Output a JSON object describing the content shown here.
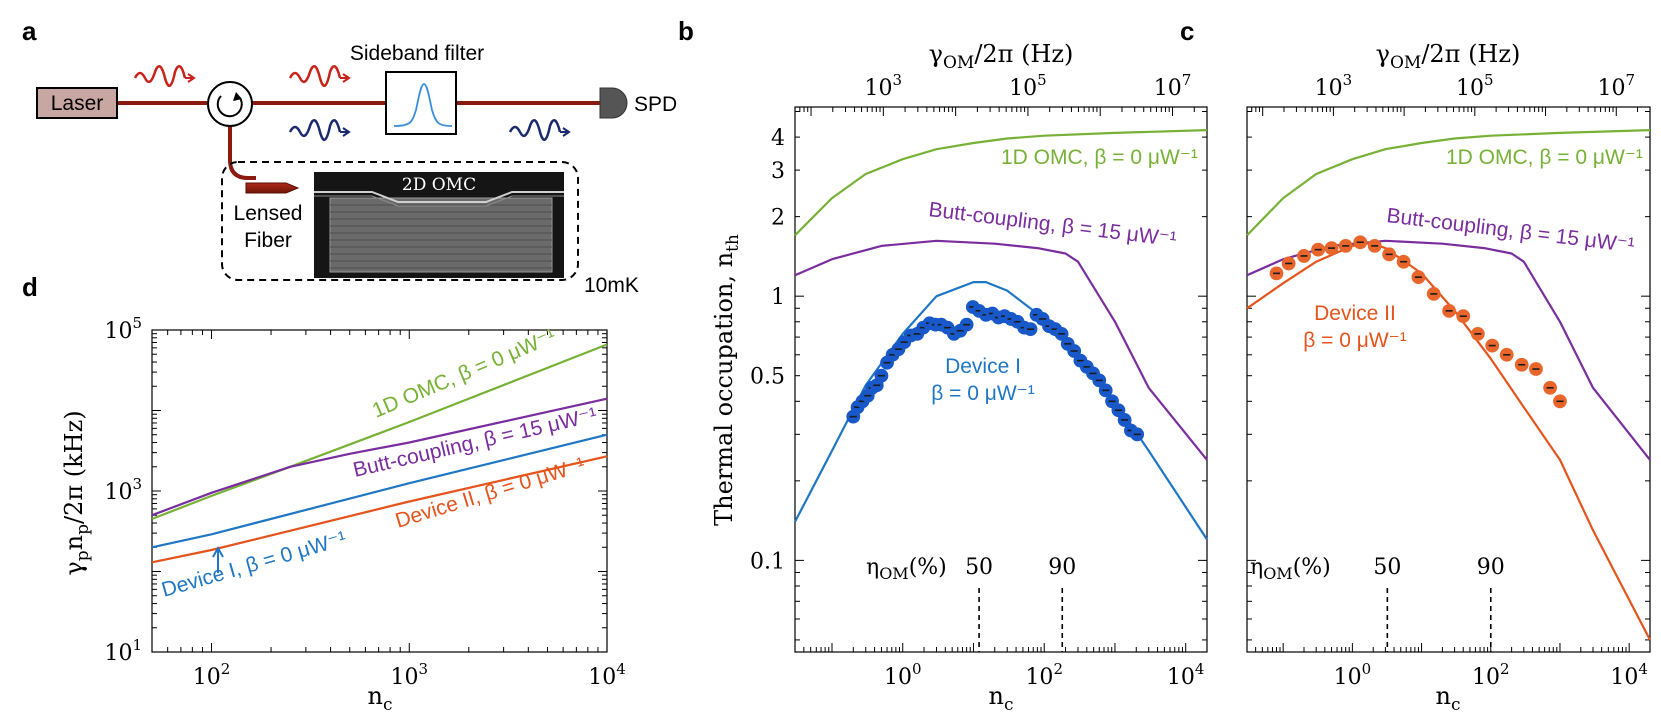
{
  "colors": {
    "green": "#77b135",
    "purple": "#7a2d9e",
    "blue": "#1f77c4",
    "orange": "#e5541c",
    "blue_pt": "#1858c8",
    "orange_pt": "#e8662c",
    "dark_red": "#8b1a0e",
    "navy": "#1a2a6c",
    "laser_box": "#c8a7a3"
  },
  "panel_labels": {
    "a": "a",
    "b": "b",
    "c": "c",
    "d": "d"
  },
  "schematic": {
    "laser": "Laser",
    "sideband_filter": "Sideband filter",
    "spd": "SPD",
    "lensed": "Lensed",
    "fiber": "Fiber",
    "device_label": "2D OMC",
    "temperature": "10mK"
  },
  "chart_data": [
    {
      "id": "d",
      "type": "line",
      "xscale": "log",
      "yscale": "log",
      "xlim": [
        50,
        10000
      ],
      "ylim": [
        10,
        100000
      ],
      "xlabel": "n_c",
      "ylabel": "γ_p n_p / 2π (kHz)",
      "xticks": [
        {
          "v": 100,
          "m": "10",
          "e": "2"
        },
        {
          "v": 1000,
          "m": "10",
          "e": "3"
        },
        {
          "v": 10000,
          "m": "10",
          "e": "4"
        }
      ],
      "yticks": [
        {
          "v": 10,
          "m": "10",
          "e": "1"
        },
        {
          "v": 1000,
          "m": "10",
          "e": "3"
        },
        {
          "v": 100000,
          "m": "10",
          "e": "5"
        }
      ],
      "series": [
        {
          "name": "1D OMC, β = 0 μW⁻¹",
          "color": "green",
          "x": [
            50,
            100,
            250,
            1000,
            10000
          ],
          "y": [
            450,
            870,
            2000,
            7200,
            66000
          ]
        },
        {
          "name": "Butt-coupling, β = 15 μW⁻¹",
          "color": "purple",
          "x": [
            50,
            100,
            250,
            500,
            1000,
            10000
          ],
          "y": [
            500,
            950,
            2000,
            2900,
            4000,
            14000
          ]
        },
        {
          "name": "Device I, β = 0 μW⁻¹",
          "color": "blue",
          "x": [
            50,
            100,
            1000,
            10000
          ],
          "y": [
            200,
            290,
            1250,
            5000
          ]
        },
        {
          "name": "Device II, β = 0 μW⁻¹",
          "color": "orange",
          "x": [
            50,
            100,
            1000,
            10000
          ],
          "y": [
            130,
            185,
            740,
            2700
          ]
        }
      ]
    },
    {
      "id": "b",
      "type": "line+scatter",
      "xscale": "log",
      "yscale": "log",
      "xlim": [
        0.03,
        20000
      ],
      "ylim": [
        0.045,
        5.2
      ],
      "xlabel": "n_c",
      "ylabel": "Thermal occupation, n_th",
      "top_xlabel": "γ_OM/2π (Hz)",
      "top_xlim": [
        60,
        30000000
      ],
      "xticks": [
        {
          "v": 1,
          "m": "10",
          "e": "0"
        },
        {
          "v": 100,
          "m": "10",
          "e": "2"
        },
        {
          "v": 10000,
          "m": "10",
          "e": "4"
        }
      ],
      "top_xticks": [
        {
          "v": 1000,
          "m": "10",
          "e": "3"
        },
        {
          "v": 100000,
          "m": "10",
          "e": "5"
        },
        {
          "v": 10000000,
          "m": "10",
          "e": "7"
        }
      ],
      "yticks": [
        0.1,
        0.5,
        1,
        2,
        3,
        4
      ],
      "ytick_labels": [
        "0.1",
        "0.5",
        "1",
        "2",
        "3",
        "4"
      ],
      "eta_label": "η_OM(%)",
      "eta_marks": [
        {
          "label": "50",
          "x": 12
        },
        {
          "label": "90",
          "x": 180
        }
      ],
      "series": [
        {
          "name": "1D OMC, β = 0 μW⁻¹",
          "color": "green",
          "x": [
            0.03,
            0.1,
            0.3,
            1,
            3,
            10,
            30,
            100,
            1000,
            20000
          ],
          "y": [
            1.7,
            2.35,
            2.9,
            3.3,
            3.6,
            3.8,
            3.95,
            4.05,
            4.15,
            4.25
          ]
        },
        {
          "name": "Butt-coupling, β = 15 μW⁻¹",
          "color": "purple",
          "x": [
            0.03,
            0.1,
            0.5,
            3,
            20,
            80,
            200,
            300,
            1000,
            3000,
            20000
          ],
          "y": [
            1.2,
            1.38,
            1.55,
            1.62,
            1.58,
            1.52,
            1.45,
            1.35,
            0.8,
            0.45,
            0.24
          ]
        },
        {
          "name": "Device I, β = 0 μW⁻¹",
          "color": "blue",
          "x": [
            0.03,
            0.1,
            0.3,
            1,
            3,
            10,
            15,
            30,
            100,
            300,
            1000,
            3000,
            20000
          ],
          "y": [
            0.14,
            0.26,
            0.46,
            0.72,
            1.0,
            1.13,
            1.13,
            1.05,
            0.82,
            0.6,
            0.4,
            0.26,
            0.12
          ]
        },
        {
          "name": "Device I data",
          "color": "blue_pt",
          "kind": "scatter",
          "x": [
            0.2,
            0.23,
            0.27,
            0.32,
            0.37,
            0.43,
            0.5,
            0.6,
            0.72,
            0.87,
            1.05,
            1.3,
            1.6,
            1.95,
            2.4,
            2.9,
            3.5,
            4.3,
            5.3,
            6.5,
            8,
            9.8,
            12,
            15,
            18.5,
            22.5,
            27.5,
            34,
            42,
            52,
            64,
            78,
            95,
            117,
            143,
            176,
            215,
            265,
            325,
            400,
            490,
            600,
            740,
            910,
            1120,
            1370,
            1680,
            2060
          ],
          "y": [
            0.35,
            0.38,
            0.4,
            0.42,
            0.45,
            0.46,
            0.5,
            0.56,
            0.6,
            0.63,
            0.67,
            0.71,
            0.72,
            0.76,
            0.79,
            0.78,
            0.78,
            0.76,
            0.72,
            0.74,
            0.78,
            0.91,
            0.88,
            0.85,
            0.86,
            0.83,
            0.84,
            0.82,
            0.8,
            0.76,
            0.75,
            0.85,
            0.82,
            0.77,
            0.75,
            0.72,
            0.66,
            0.62,
            0.57,
            0.54,
            0.51,
            0.48,
            0.44,
            0.4,
            0.37,
            0.34,
            0.31,
            0.3
          ]
        }
      ],
      "annotations": {
        "omc": "1D OMC, β = 0 μW⁻¹",
        "butt": "Butt-coupling, β = 15 μW⁻¹",
        "dev1_line1": "Device I",
        "dev1_line2": "β = 0 μW⁻¹"
      }
    },
    {
      "id": "c",
      "type": "line+scatter",
      "xscale": "log",
      "yscale": "log",
      "xlim": [
        0.03,
        20000
      ],
      "ylim": [
        0.045,
        5.2
      ],
      "xlabel": "n_c",
      "top_xlabel": "γ_OM/2π (Hz)",
      "top_xlim": [
        60,
        30000000
      ],
      "xticks": [
        {
          "v": 1,
          "m": "10",
          "e": "0"
        },
        {
          "v": 100,
          "m": "10",
          "e": "2"
        },
        {
          "v": 10000,
          "m": "10",
          "e": "4"
        }
      ],
      "top_xticks": [
        {
          "v": 1000,
          "m": "10",
          "e": "3"
        },
        {
          "v": 100000,
          "m": "10",
          "e": "5"
        },
        {
          "v": 10000000,
          "m": "10",
          "e": "7"
        }
      ],
      "eta_label": "η_OM(%)",
      "eta_marks": [
        {
          "label": "50",
          "x": 3.2
        },
        {
          "label": "90",
          "x": 100
        }
      ],
      "series": [
        {
          "name": "1D OMC, β = 0 μW⁻¹",
          "color": "green",
          "x": [
            0.03,
            0.1,
            0.3,
            1,
            3,
            10,
            30,
            100,
            1000,
            20000
          ],
          "y": [
            1.7,
            2.35,
            2.9,
            3.3,
            3.6,
            3.8,
            3.95,
            4.05,
            4.15,
            4.25
          ]
        },
        {
          "name": "Butt-coupling, β = 15 μW⁻¹",
          "color": "purple",
          "x": [
            0.03,
            0.1,
            0.5,
            3,
            20,
            80,
            200,
            300,
            1000,
            3000,
            20000
          ],
          "y": [
            1.2,
            1.38,
            1.55,
            1.62,
            1.58,
            1.52,
            1.45,
            1.35,
            0.8,
            0.45,
            0.24
          ]
        },
        {
          "name": "Device II, β = 0 μW⁻¹",
          "color": "orange",
          "x": [
            0.03,
            0.1,
            0.3,
            1,
            1.8,
            3,
            10,
            30,
            100,
            300,
            1000,
            3000,
            20000
          ],
          "y": [
            0.9,
            1.12,
            1.35,
            1.55,
            1.59,
            1.52,
            1.22,
            0.88,
            0.58,
            0.38,
            0.24,
            0.13,
            0.05
          ]
        },
        {
          "name": "Device II data",
          "color": "orange_pt",
          "kind": "scatter",
          "x": [
            0.08,
            0.12,
            0.2,
            0.32,
            0.5,
            0.8,
            1.3,
            2.1,
            3.4,
            5.5,
            9,
            15,
            25,
            40,
            65,
            105,
            170,
            280,
            450,
            720,
            1000
          ],
          "y": [
            1.22,
            1.33,
            1.42,
            1.5,
            1.52,
            1.55,
            1.6,
            1.55,
            1.44,
            1.35,
            1.18,
            1.02,
            0.88,
            0.84,
            0.72,
            0.65,
            0.6,
            0.55,
            0.53,
            0.45,
            0.4
          ]
        }
      ],
      "annotations": {
        "omc": "1D OMC, β = 0 μW⁻¹",
        "butt": "Butt-coupling, β = 15 μW⁻¹",
        "dev2_line1": "Device II",
        "dev2_line2": "β = 0 μW⁻¹"
      }
    }
  ]
}
